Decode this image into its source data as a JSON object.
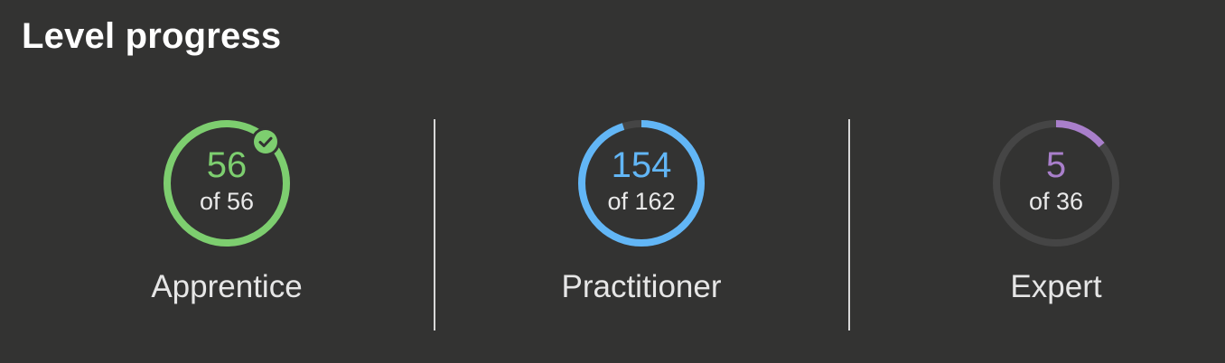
{
  "header": {
    "title": "Level progress"
  },
  "colors": {
    "background": "#333332",
    "track": "#454545",
    "apprentice": "#7dce6f",
    "practitioner": "#62b6f6",
    "expert": "#a97fcb"
  },
  "levels": [
    {
      "name": "Apprentice",
      "completed": "56",
      "of_text": "of 56",
      "progress": 1.0,
      "complete": true,
      "icon": "check-circle-icon"
    },
    {
      "name": "Practitioner",
      "completed": "154",
      "of_text": "of 162",
      "progress": 0.9506,
      "complete": false
    },
    {
      "name": "Expert",
      "completed": "5",
      "of_text": "of 36",
      "progress": 0.1389,
      "complete": false
    }
  ]
}
